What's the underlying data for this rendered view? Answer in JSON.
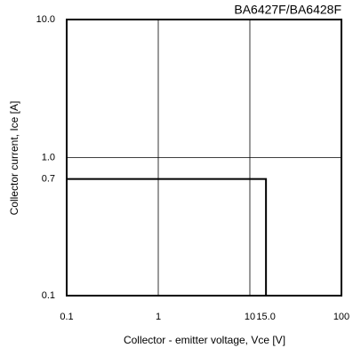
{
  "chart_data": {
    "type": "line",
    "title": "BA6427F/BA6428F",
    "x_label": "Collector - emitter voltage, Vce [V]",
    "y_label": "Collector current, Ice [A]",
    "x_scale": "log",
    "y_scale": "log",
    "xlim": [
      0.1,
      100
    ],
    "ylim": [
      0.1,
      10
    ],
    "xticks": [
      0.1,
      1,
      10,
      {
        "value": 15,
        "label": "15.0"
      },
      100
    ],
    "yticks": [
      0.1,
      0.7,
      {
        "value": 1,
        "label": "1.0"
      },
      {
        "value": 10,
        "label": "10.0"
      }
    ],
    "grid": true,
    "series": [
      {
        "color": "#000000",
        "x": [
          0.1,
          15,
          15
        ],
        "values": [
          0.7,
          0.7,
          0.1
        ]
      }
    ]
  }
}
